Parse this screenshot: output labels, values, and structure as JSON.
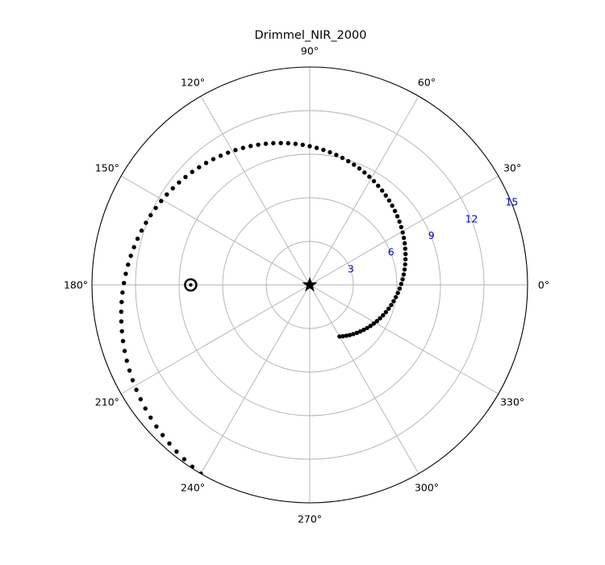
{
  "chart_data": {
    "type": "scatter",
    "projection": "polar",
    "title": "Drimmel_NIR_2000",
    "theta_unit": "degrees",
    "theta_ticks": [
      0,
      30,
      60,
      90,
      120,
      150,
      180,
      210,
      240,
      270,
      300,
      330
    ],
    "theta_tick_labels": [
      "0°",
      "30°",
      "60°",
      "90°",
      "120°",
      "150°",
      "180°",
      "210°",
      "240°",
      "270°",
      "300°",
      "330°"
    ],
    "r_ticks": [
      3,
      6,
      9,
      12,
      15
    ],
    "r_tick_labels": [
      "3",
      "6",
      "9",
      "12",
      "15"
    ],
    "r_tick_label_color": "#0000cc",
    "r_tick_label_angle_deg": 22.5,
    "rlim": [
      0,
      15
    ],
    "grid": true,
    "grid_color": "#b0b0b0",
    "series": [
      {
        "marker": "dot",
        "color": "#000000",
        "spiral": {
          "theta_start_deg": -60,
          "theta_end_deg": 240,
          "r_start": 4.1,
          "r_end": 15.0,
          "count": 105
        }
      },
      {
        "marker": "star",
        "color": "#000000",
        "points": [
          {
            "theta": 0,
            "r": 0
          }
        ]
      },
      {
        "marker": "circled-dot",
        "color": "#000000",
        "points": [
          {
            "theta": 180,
            "r": 8.2
          }
        ]
      }
    ]
  }
}
